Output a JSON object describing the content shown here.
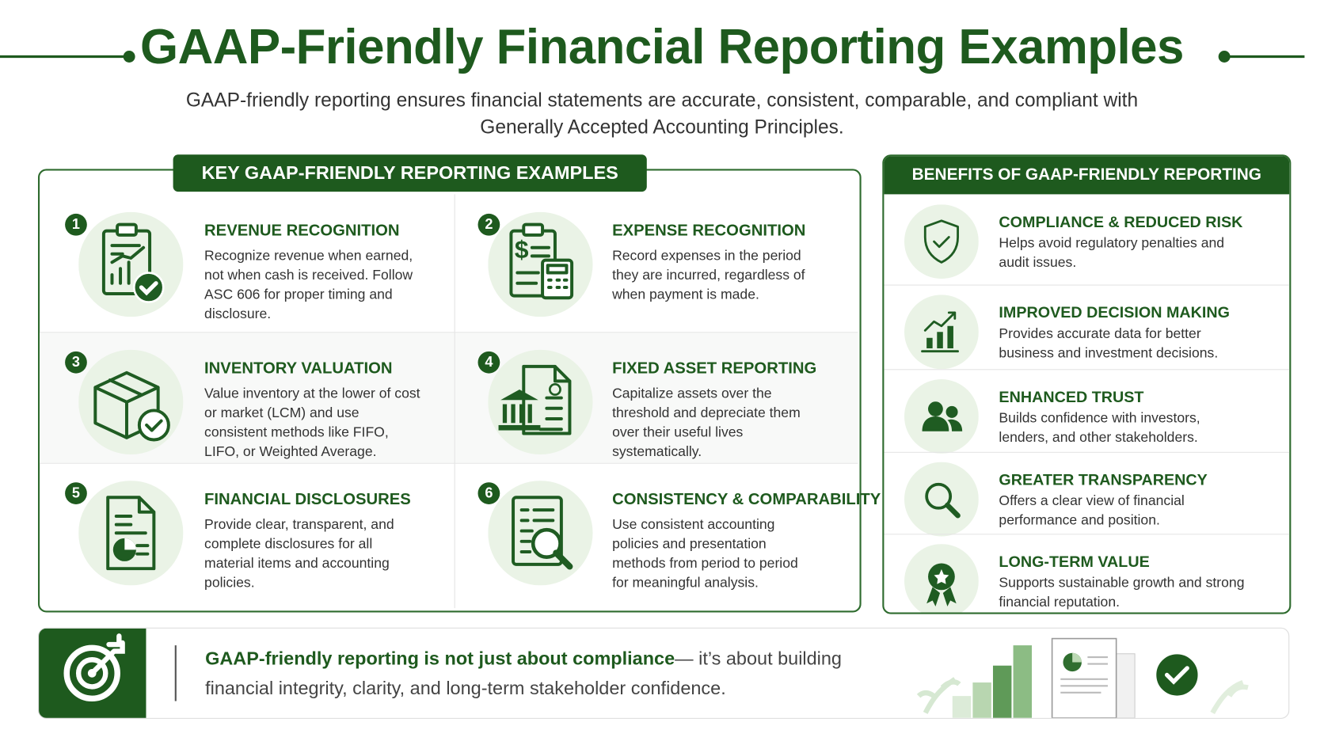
{
  "header": {
    "title": "GAAP-Friendly Financial Reporting Examples",
    "subtitle": "GAAP-friendly reporting ensures financial statements are accurate, consistent, comparable, and compliant with Generally Accepted Accounting Principles."
  },
  "examples": {
    "heading": "KEY GAAP-FRIENDLY REPORTING EXAMPLES",
    "items": [
      {
        "number": "1",
        "title": "REVENUE RECOGNITION",
        "description": "Recognize revenue when earned, not when cash is received. Follow ASC 606 for proper timing and disclosure."
      },
      {
        "number": "2",
        "title": "EXPENSE RECOGNITION",
        "description": "Record expenses in the period they are incurred, regardless of when payment is made."
      },
      {
        "number": "3",
        "title": "INVENTORY VALUATION",
        "description": "Value inventory at the lower of cost or market (LCM) and use consistent methods like FIFO, LIFO, or Weighted Average."
      },
      {
        "number": "4",
        "title": "FIXED ASSET REPORTING",
        "description": "Capitalize assets over the threshold and depreciate them over their useful lives systematically."
      },
      {
        "number": "5",
        "title": "FINANCIAL DISCLOSURES",
        "description": "Provide clear, transparent, and complete disclosures for all material items and accounting policies."
      },
      {
        "number": "6",
        "title": "CONSISTENCY & COMPARABILITY",
        "description": "Use consistent accounting policies and presentation methods from  period to period for meaningful analysis."
      }
    ]
  },
  "benefits": {
    "heading": "BENEFITS OF GAAP-FRIENDLY REPORTING",
    "items": [
      {
        "title": "COMPLIANCE & REDUCED RISK",
        "description": "Helps avoid regulatory penalties and audit issues."
      },
      {
        "title": "IMPROVED DECISION MAKING",
        "description": "Provides accurate data for better business and investment decisions."
      },
      {
        "title": "ENHANCED TRUST",
        "description": "Builds confidence with investors, lenders, and other stakeholders."
      },
      {
        "title": "GREATER TRANSPARENCY",
        "description": "Offers a clear view of financial performance and position."
      },
      {
        "title": "LONG-TERM VALUE",
        "description": "Supports sustainable growth and strong financial reputation."
      }
    ]
  },
  "footer": {
    "emphasis": "GAAP-friendly reporting is not just about compliance",
    "text": "— it’s about building financial integrity, clarity, and long-term stakeholder confidence."
  }
}
